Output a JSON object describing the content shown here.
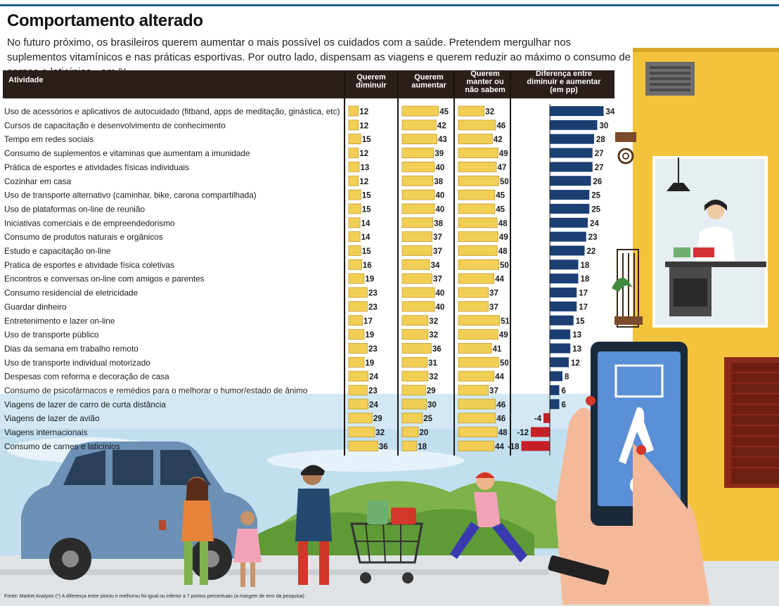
{
  "title": "Comportamento alterado",
  "subtitle": "No futuro próximo, os brasileiros querem aumentar o mais possível os cuidados com a saúde. Pretendem mergulhar nos suplementos vitamínicos e nas práticas esportivas. Por outro lado, dispensam as viagens e querem reduzir ao máximo o consumo de carnes e laticínios - em %",
  "footnote": "Fonte: Market Analysis (*) A diferença entre piorou e melhorou foi igual ou inferior a 7 pontos percentuais (a margem de erro da pesquisa)",
  "colors": {
    "header_bg": "#2a1f1a",
    "bar_yellow": "#f1cf55",
    "bar_yellow_dark": "#c79a24",
    "diff_positive": "#1b3f73",
    "diff_negative": "#c42126",
    "sky": "#cfe6f3",
    "building": "#f3c33c"
  },
  "chart_data": {
    "type": "bar",
    "columns": [
      {
        "key": "atividade",
        "label": "Atividade"
      },
      {
        "key": "diminuir",
        "label": "Querem diminuir"
      },
      {
        "key": "aumentar",
        "label": "Querem aumentar"
      },
      {
        "key": "manter",
        "label": "Querem manter ou não sabem"
      },
      {
        "key": "diferenca",
        "label": "Diferença entre diminuir e aumentar (em pp)"
      }
    ],
    "categories": [
      "Uso de acessórios e aplicativos de autocuidado (fitband, apps de meditação, ginástica, etc)",
      "Cursos de capacitação e desenvolvimento de conhecimento",
      "Tempo em redes sociais",
      "Consumo de suplementos e vitaminas que aumentam a imunidade",
      "Prática de esportes e atividades físicas individuais",
      "Cozinhar em casa",
      "Uso de transporte alternativo (caminhar, bike, carona compartilhada)",
      "Uso de plataformas on-line  de reunião",
      "Iniciativas comerciais e de empreendedorismo",
      "Consumo de produtos naturais e orgânicos",
      "Estudo e capacitação on-line",
      "Pratica de esportes e atividade física coletivas",
      "Encontros e conversas on-line com amigos e parentes",
      "Consumo residencial de eletricidade",
      "Guardar dinheiro",
      "Entretenimento e lazer on-line",
      "Uso de transporte público",
      "Dias da semana em trabalho remoto",
      "Uso de transporte individual motorizado",
      "Despesas com reforma e decoração de casa",
      "Consumo de psicofármacos e remédios para o melhorar o humor/estado de ânimo",
      "Viagens de lazer de carro de curta distância",
      "Viagens de lazer de avião",
      "Viagens internacionais",
      "Consumo de carnes e laticínios"
    ],
    "series": [
      {
        "name": "Querem diminuir",
        "values": [
          12,
          12,
          15,
          12,
          13,
          12,
          15,
          15,
          14,
          14,
          15,
          16,
          19,
          23,
          23,
          17,
          19,
          23,
          19,
          24,
          23,
          24,
          29,
          32,
          36
        ]
      },
      {
        "name": "Querem aumentar",
        "values": [
          45,
          42,
          43,
          39,
          40,
          38,
          40,
          40,
          38,
          37,
          37,
          34,
          37,
          40,
          40,
          32,
          32,
          36,
          31,
          32,
          29,
          30,
          25,
          20,
          18
        ]
      },
      {
        "name": "Querem manter ou não sabem",
        "values": [
          32,
          46,
          42,
          49,
          47,
          50,
          45,
          45,
          48,
          49,
          48,
          50,
          44,
          37,
          37,
          51,
          49,
          41,
          50,
          44,
          37,
          46,
          46,
          48,
          44
        ]
      },
      {
        "name": "Diferença entre diminuir e aumentar (em pp)",
        "values": [
          34,
          30,
          28,
          27,
          27,
          26,
          25,
          25,
          24,
          23,
          22,
          18,
          18,
          17,
          17,
          15,
          13,
          13,
          12,
          8,
          6,
          6,
          -4,
          -12,
          -18
        ]
      }
    ]
  }
}
